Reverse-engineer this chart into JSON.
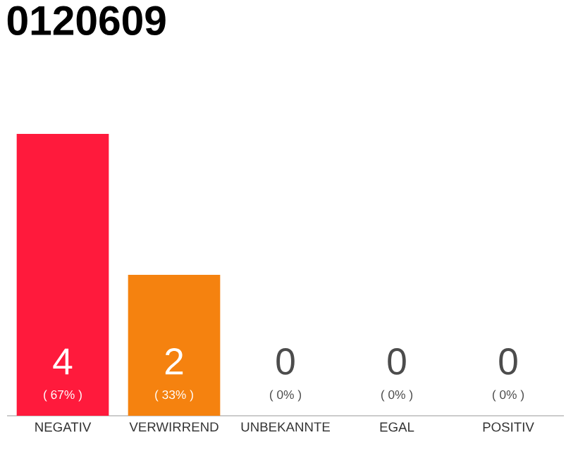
{
  "chart_data": {
    "type": "bar",
    "title": "0120609",
    "categories": [
      "NEGATIV",
      "VERWIRREND",
      "UNBEKANNTE",
      "EGAL",
      "POSITIV"
    ],
    "values": [
      4,
      2,
      0,
      0,
      0
    ],
    "colors": [
      "#ff1a3c",
      "#f5820f",
      "#cccccc",
      "#cccccc",
      "#cccccc"
    ],
    "value_labels": [
      "4",
      "2",
      "0",
      "0",
      "0"
    ],
    "annotations": [
      "( 67% )",
      "( 33% )",
      "( 0% )",
      "( 0% )",
      "( 0% )"
    ]
  }
}
